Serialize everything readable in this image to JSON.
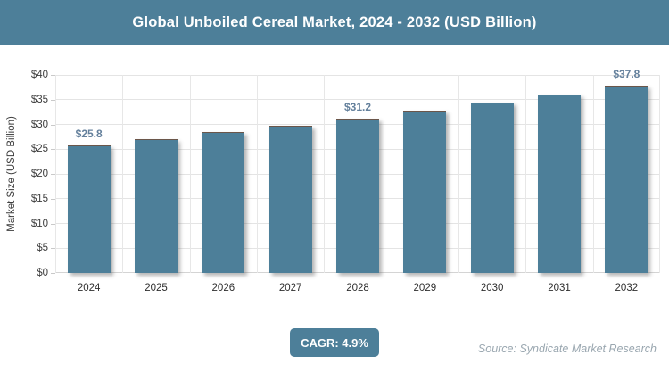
{
  "header": {
    "title": "Global Unboiled Cereal Market, 2024 - 2032 (USD Billion)"
  },
  "chart_data": {
    "type": "bar",
    "title": "Global Unboiled Cereal Market, 2024 - 2032 (USD Billion)",
    "categories": [
      "2024",
      "2025",
      "2026",
      "2027",
      "2028",
      "2029",
      "2030",
      "2031",
      "2032"
    ],
    "values": [
      25.8,
      27.1,
      28.4,
      29.8,
      31.2,
      32.8,
      34.4,
      36.1,
      37.8
    ],
    "point_labels": [
      "$25.8",
      "",
      "",
      "",
      "$31.2",
      "",
      "",
      "",
      "$37.8"
    ],
    "xlabel": "",
    "ylabel": "Market Size (USD Billion)",
    "ylim": [
      0,
      40
    ],
    "ytick_step": 5,
    "yticks": [
      "$0",
      "$5",
      "$10",
      "$15",
      "$20",
      "$25",
      "$30",
      "$35",
      "$40"
    ],
    "grid": true,
    "legend_position": "none",
    "bar_color": "#4d7f99"
  },
  "footer": {
    "cagr_label": "CAGR: 4.9%",
    "source": "Source: Syndicate Market Research"
  },
  "colors": {
    "accent": "#4d7f99",
    "grid": "#e4e4e4",
    "data_label": "#64809c",
    "source_text": "#9aa7b0"
  }
}
